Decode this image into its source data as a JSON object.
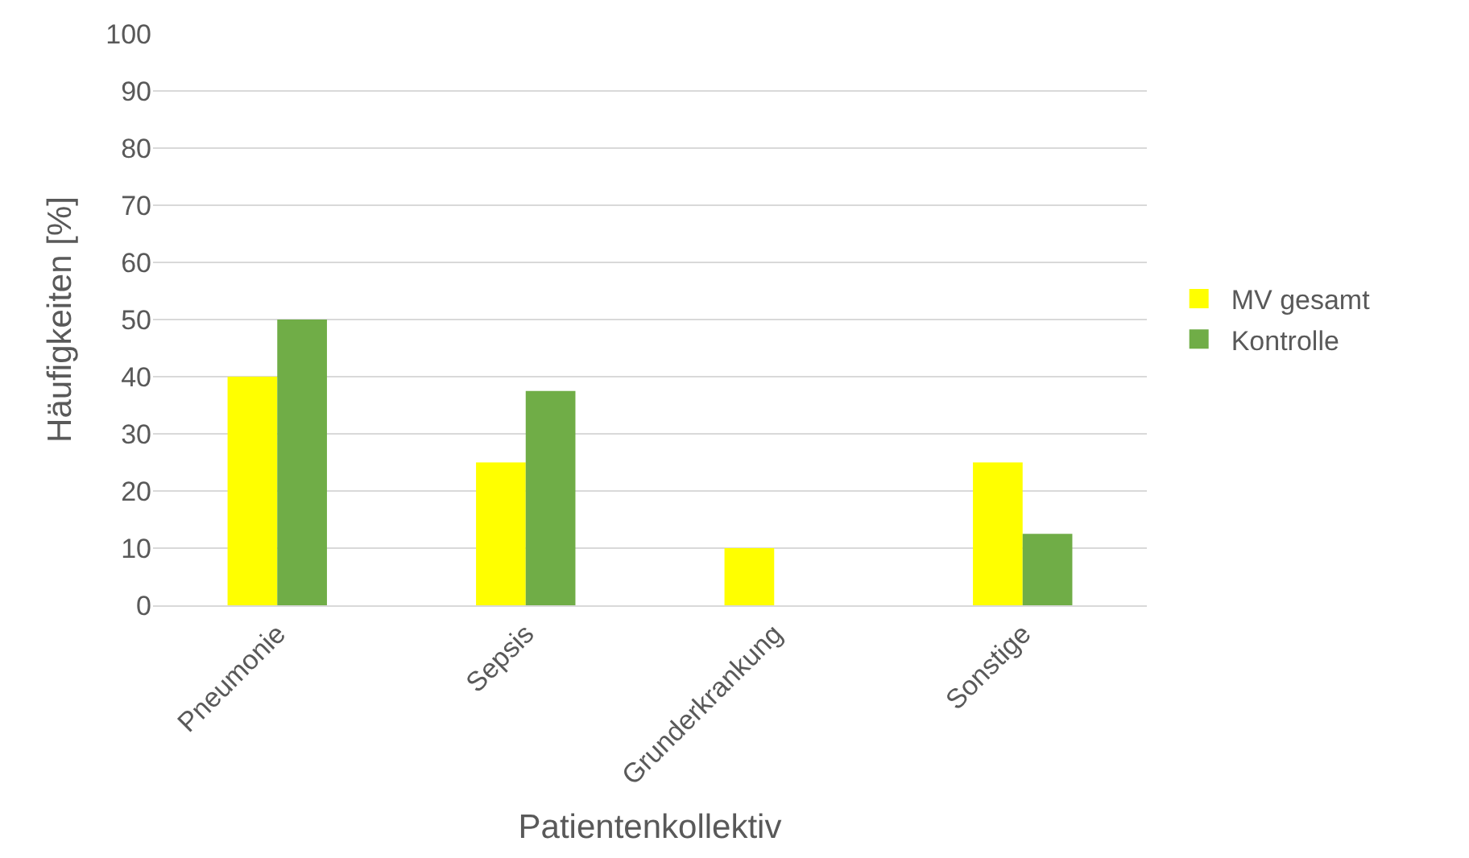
{
  "chart_data": {
    "type": "bar",
    "xlabel": "Patientenkollektiv",
    "ylabel": "Häufigkeiten [%]",
    "categories": [
      "Pneumonie",
      "Sepsis",
      "Grunderkrankung",
      "Sonstige"
    ],
    "series": [
      {
        "name": "MV gesamt",
        "color": "#ffff00",
        "values": [
          40,
          25,
          10,
          25
        ]
      },
      {
        "name": "Kontrolle",
        "color": "#70ad47",
        "values": [
          50,
          37.5,
          0,
          12.5
        ]
      }
    ],
    "ylim": [
      0,
      100
    ],
    "yticks": [
      0,
      10,
      20,
      30,
      40,
      50,
      60,
      70,
      80,
      90,
      100
    ],
    "grid": "y",
    "legend": "right"
  }
}
